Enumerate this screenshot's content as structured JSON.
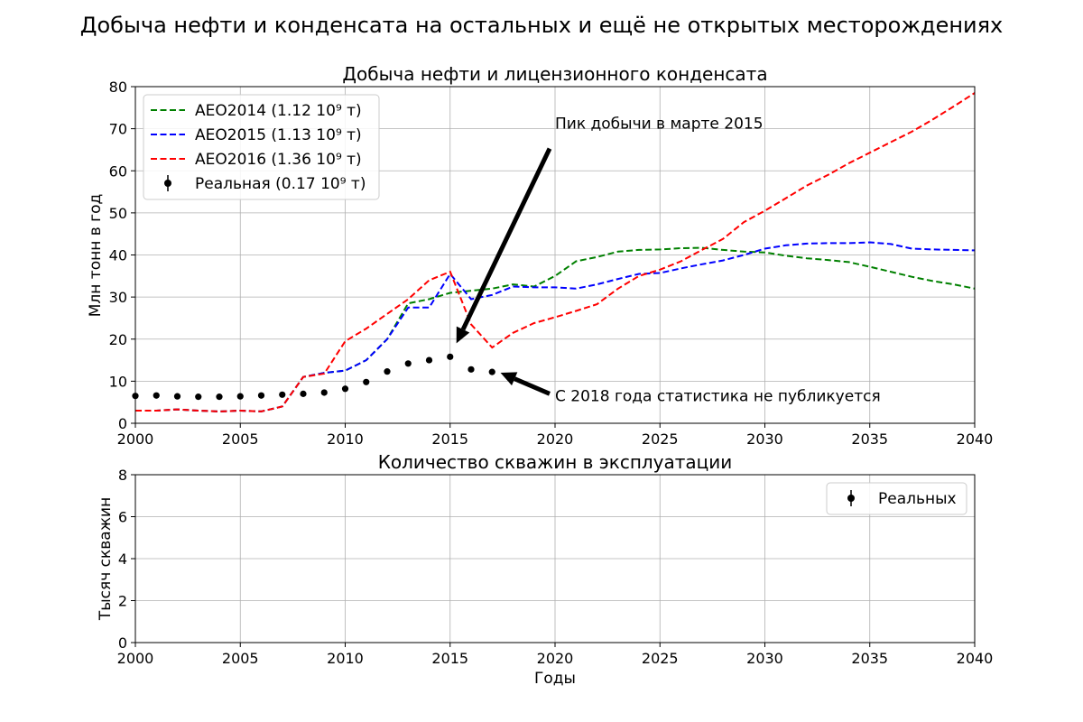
{
  "figure": {
    "title": "Добыча нефти и конденсата на остальных и ещё не открытых месторождениях"
  },
  "chart_data": [
    {
      "type": "line",
      "title": "Добыча нефти и лицензионного конденсата",
      "xlabel": "",
      "ylabel": "Млн тонн в год",
      "xlim": [
        2000,
        2040
      ],
      "ylim": [
        0,
        80
      ],
      "x_ticks": [
        "2000",
        "2005",
        "2010",
        "2015",
        "2020",
        "2025",
        "2030",
        "2035",
        "2040"
      ],
      "y_ticks": [
        "0",
        "10",
        "20",
        "30",
        "40",
        "50",
        "60",
        "70",
        "80"
      ],
      "grid": true,
      "legend_position": "top-left",
      "series": [
        {
          "name": "AEO2014 (1.12 10⁹ т)",
          "style": "dashed",
          "color": "#008000",
          "x": [
            2000,
            2001,
            2002,
            2003,
            2004,
            2005,
            2006,
            2007,
            2008,
            2009,
            2010,
            2011,
            2012,
            2013,
            2014,
            2015,
            2016,
            2017,
            2018,
            2019,
            2020,
            2021,
            2022,
            2023,
            2024,
            2025,
            2026,
            2027,
            2028,
            2029,
            2030,
            2031,
            2032,
            2033,
            2034,
            2035,
            2036,
            2037,
            2038,
            2039,
            2040
          ],
          "y": [
            3.0,
            3.0,
            3.3,
            3.0,
            2.8,
            3.0,
            2.8,
            4.0,
            11.0,
            12.0,
            12.5,
            15.0,
            20.0,
            28.5,
            29.5,
            31.0,
            31.5,
            32.0,
            33.0,
            32.5,
            35.0,
            38.5,
            39.5,
            40.8,
            41.2,
            41.3,
            41.6,
            41.7,
            41.2,
            40.8,
            40.6,
            39.8,
            39.2,
            38.8,
            38.3,
            37.2,
            36.0,
            34.8,
            33.8,
            33.0,
            32.0
          ]
        },
        {
          "name": "AEO2015 (1.13 10⁹ т)",
          "style": "dashed",
          "color": "#0000ff",
          "x": [
            2000,
            2001,
            2002,
            2003,
            2004,
            2005,
            2006,
            2007,
            2008,
            2009,
            2010,
            2011,
            2012,
            2013,
            2014,
            2015,
            2016,
            2017,
            2018,
            2019,
            2020,
            2021,
            2022,
            2023,
            2024,
            2025,
            2026,
            2027,
            2028,
            2029,
            2030,
            2031,
            2032,
            2033,
            2034,
            2035,
            2036,
            2037,
            2038,
            2039,
            2040
          ],
          "y": [
            3.0,
            3.0,
            3.3,
            3.0,
            2.8,
            3.0,
            2.8,
            4.0,
            11.0,
            12.0,
            12.5,
            15.0,
            20.0,
            27.5,
            27.5,
            35.5,
            29.5,
            30.5,
            32.5,
            32.3,
            32.3,
            32.0,
            33.0,
            34.3,
            35.5,
            35.7,
            36.8,
            37.8,
            38.7,
            40.0,
            41.5,
            42.3,
            42.7,
            42.8,
            42.8,
            43.0,
            42.6,
            41.5,
            41.3,
            41.2,
            41.1
          ]
        },
        {
          "name": "AEO2016 (1.36 10⁹ т)",
          "style": "dashed",
          "color": "#ff0000",
          "x": [
            2000,
            2001,
            2002,
            2003,
            2004,
            2005,
            2006,
            2007,
            2008,
            2009,
            2010,
            2011,
            2012,
            2013,
            2014,
            2015,
            2016,
            2017,
            2018,
            2019,
            2020,
            2021,
            2022,
            2023,
            2024,
            2025,
            2026,
            2027,
            2028,
            2029,
            2030,
            2031,
            2032,
            2033,
            2034,
            2035,
            2036,
            2037,
            2038,
            2039,
            2040
          ],
          "y": [
            3.0,
            3.0,
            3.3,
            3.0,
            2.8,
            3.0,
            2.8,
            4.0,
            11.0,
            11.8,
            19.5,
            22.5,
            26.0,
            29.5,
            34.0,
            36.0,
            23.5,
            18.0,
            21.5,
            23.8,
            25.2,
            26.7,
            28.3,
            32.0,
            35.0,
            36.5,
            38.5,
            41.2,
            43.8,
            47.8,
            50.5,
            53.5,
            56.5,
            59.0,
            61.8,
            64.3,
            66.8,
            69.3,
            72.2,
            75.3,
            78.5
          ]
        },
        {
          "name": "Реальная (0.17 10⁹ т)",
          "style": "points",
          "color": "#000000",
          "x": [
            2000,
            2001,
            2002,
            2003,
            2004,
            2005,
            2006,
            2007,
            2008,
            2009,
            2010,
            2011,
            2012,
            2013,
            2014,
            2015,
            2016,
            2017
          ],
          "y": [
            6.5,
            6.6,
            6.4,
            6.3,
            6.3,
            6.4,
            6.6,
            6.8,
            7.0,
            7.3,
            8.2,
            9.8,
            12.3,
            14.2,
            15.0,
            15.8,
            12.8,
            12.2
          ]
        }
      ],
      "annotations": [
        {
          "text": "Пик добычи в марте 2015",
          "text_xy": [
            2020,
            70
          ],
          "arrow_to": [
            2015.3,
            19.0
          ]
        },
        {
          "text": "С 2018 года статистика не публикуется",
          "text_xy": [
            2020,
            5.3
          ],
          "arrow_to": [
            2017.4,
            12.0
          ]
        }
      ]
    },
    {
      "type": "scatter",
      "title": "Количество скважин в эксплуатации",
      "xlabel": "Годы",
      "ylabel": "Тысяч скважин",
      "xlim": [
        2000,
        2040
      ],
      "ylim": [
        0,
        8
      ],
      "x_ticks": [
        "2000",
        "2005",
        "2010",
        "2015",
        "2020",
        "2025",
        "2030",
        "2035",
        "2040"
      ],
      "y_ticks": [
        "0",
        "2",
        "4",
        "6",
        "8"
      ],
      "grid": true,
      "legend_position": "top-right",
      "series": [
        {
          "name": "Реальных",
          "style": "points",
          "color": "#000000",
          "x": [],
          "y": []
        }
      ]
    }
  ]
}
